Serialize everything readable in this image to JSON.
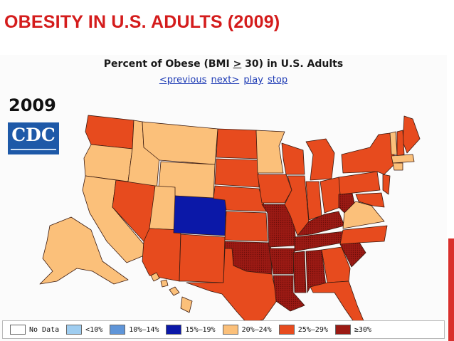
{
  "slide": {
    "title": "OBESITY IN U.S. ADULTS (2009)"
  },
  "map": {
    "heading_pre": "Percent of Obese (BMI ",
    "heading_ge": ">",
    "heading_post": " 30) in U.S. Adults",
    "nav": {
      "previous": "<previous",
      "next": "next>",
      "play": "play",
      "stop": "stop"
    },
    "year": "2009",
    "logo_text": "CDC"
  },
  "legend": [
    {
      "label": "No Data",
      "color": "#ffffff"
    },
    {
      "label": "<10%",
      "color": "#9fcdf0"
    },
    {
      "label": "10%–14%",
      "color": "#5f95d8"
    },
    {
      "label": "15%–19%",
      "color": "#0b18a8"
    },
    {
      "label": "20%–24%",
      "color": "#fbc07a"
    },
    {
      "label": "25%–29%",
      "color": "#e74b1e"
    },
    {
      "label": "≥30%",
      "color": "#9b1a14"
    }
  ],
  "state_category": {
    "WA": "25%–29%",
    "OR": "20%–24%",
    "CA": "20%–24%",
    "ID": "20%–24%",
    "NV": "25%–29%",
    "MT": "20%–24%",
    "WY": "20%–24%",
    "UT": "20%–24%",
    "AZ": "25%–29%",
    "CO": "15%–19%",
    "NM": "25%–29%",
    "ND": "25%–29%",
    "SD": "25%–29%",
    "NE": "25%–29%",
    "KS": "25%–29%",
    "OK": "≥30%",
    "TX": "25%–29%",
    "MN": "20%–24%",
    "IA": "25%–29%",
    "MO": "≥30%",
    "AR": "≥30%",
    "LA": "≥30%",
    "WI": "25%–29%",
    "IL": "25%–29%",
    "MI": "25%–29%",
    "IN": "25%–29%",
    "OH": "25%–29%",
    "KY": "≥30%",
    "TN": "≥30%",
    "MS": "≥30%",
    "AL": "≥30%",
    "GA": "25%–29%",
    "FL": "25%–29%",
    "SC": "≥30%",
    "NC": "25%–29%",
    "VA": "20%–24%",
    "WV": "≥30%",
    "PA": "25%–29%",
    "NY": "25%–29%",
    "ME": "25%–29%",
    "VT": "20%–24%",
    "NH": "25%–29%",
    "MA": "20%–24%",
    "CT": "20%–24%",
    "NJ": "25%–29%",
    "MD": "25%–29%",
    "AK": "20%–24%",
    "HI": "20%–24%"
  }
}
